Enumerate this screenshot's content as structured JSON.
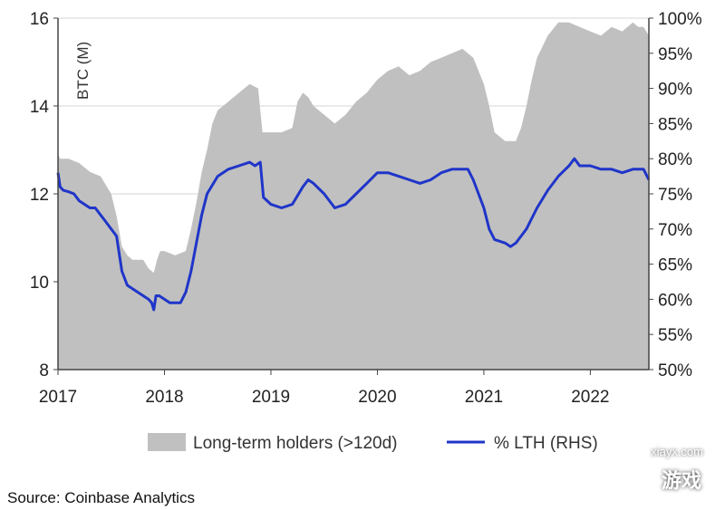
{
  "chart_data": {
    "type": "area",
    "title": "",
    "ylabel": "BTC (M)",
    "ylim": [
      8,
      16
    ],
    "y2lim": [
      50,
      100
    ],
    "y_ticks": [
      "8",
      "10",
      "12",
      "14",
      "16"
    ],
    "y2_ticks": [
      "50%",
      "55%",
      "60%",
      "65%",
      "70%",
      "75%",
      "80%",
      "85%",
      "90%",
      "95%",
      "100%"
    ],
    "x_ticks": [
      "2017",
      "2018",
      "2019",
      "2020",
      "2021",
      "2022"
    ],
    "xlim": [
      2017.0,
      2022.55
    ],
    "grid": "horizontal",
    "legend_position": "bottom",
    "series": [
      {
        "name": "Long-term holders (>120d)",
        "type": "area",
        "axis": "left",
        "color": "#c0c0c0",
        "x": [
          2017.0,
          2017.02,
          2017.1,
          2017.2,
          2017.3,
          2017.4,
          2017.5,
          2017.55,
          2017.6,
          2017.65,
          2017.7,
          2017.8,
          2017.85,
          2017.9,
          2017.93,
          2017.96,
          2018.0,
          2018.1,
          2018.2,
          2018.25,
          2018.3,
          2018.35,
          2018.4,
          2018.45,
          2018.5,
          2018.6,
          2018.7,
          2018.8,
          2018.88,
          2018.92,
          2019.0,
          2019.1,
          2019.2,
          2019.25,
          2019.3,
          2019.35,
          2019.4,
          2019.5,
          2019.6,
          2019.7,
          2019.8,
          2019.9,
          2020.0,
          2020.1,
          2020.2,
          2020.3,
          2020.4,
          2020.5,
          2020.6,
          2020.7,
          2020.8,
          2020.9,
          2021.0,
          2021.05,
          2021.1,
          2021.2,
          2021.3,
          2021.35,
          2021.4,
          2021.45,
          2021.5,
          2021.6,
          2021.7,
          2021.8,
          2021.9,
          2022.0,
          2022.1,
          2022.2,
          2022.3,
          2022.4,
          2022.45,
          2022.5,
          2022.55
        ],
        "values": [
          12.9,
          12.8,
          12.8,
          12.7,
          12.5,
          12.4,
          12.0,
          11.5,
          10.8,
          10.6,
          10.5,
          10.5,
          10.3,
          10.2,
          10.5,
          10.7,
          10.7,
          10.6,
          10.7,
          11.2,
          11.8,
          12.5,
          13.0,
          13.6,
          13.9,
          14.1,
          14.3,
          14.5,
          14.4,
          13.4,
          13.4,
          13.4,
          13.5,
          14.1,
          14.3,
          14.2,
          14.0,
          13.8,
          13.6,
          13.8,
          14.1,
          14.3,
          14.6,
          14.8,
          14.9,
          14.7,
          14.8,
          15.0,
          15.1,
          15.2,
          15.3,
          15.1,
          14.5,
          14.0,
          13.4,
          13.2,
          13.2,
          13.5,
          14.0,
          14.6,
          15.1,
          15.6,
          15.9,
          15.9,
          15.8,
          15.7,
          15.6,
          15.8,
          15.7,
          15.9,
          15.8,
          15.8,
          15.6
        ]
      },
      {
        "name": "% LTH (RHS)",
        "type": "line",
        "axis": "right",
        "color": "#1f35c9",
        "x": [
          2017.0,
          2017.02,
          2017.05,
          2017.1,
          2017.15,
          2017.2,
          2017.3,
          2017.35,
          2017.4,
          2017.45,
          2017.5,
          2017.55,
          2017.6,
          2017.65,
          2017.7,
          2017.75,
          2017.8,
          2017.85,
          2017.88,
          2017.9,
          2017.92,
          2017.95,
          2018.0,
          2018.05,
          2018.1,
          2018.15,
          2018.2,
          2018.25,
          2018.3,
          2018.35,
          2018.4,
          2018.5,
          2018.6,
          2018.7,
          2018.8,
          2018.85,
          2018.9,
          2018.93,
          2019.0,
          2019.1,
          2019.2,
          2019.3,
          2019.35,
          2019.4,
          2019.5,
          2019.6,
          2019.7,
          2019.8,
          2019.9,
          2020.0,
          2020.1,
          2020.2,
          2020.3,
          2020.4,
          2020.5,
          2020.6,
          2020.7,
          2020.75,
          2020.8,
          2020.85,
          2020.9,
          2021.0,
          2021.05,
          2021.1,
          2021.2,
          2021.25,
          2021.3,
          2021.4,
          2021.5,
          2021.6,
          2021.7,
          2021.8,
          2021.85,
          2021.9,
          2022.0,
          2022.1,
          2022.2,
          2022.3,
          2022.4,
          2022.5,
          2022.55
        ],
        "values": [
          78,
          76,
          75.5,
          75.3,
          75,
          74,
          73,
          73,
          72,
          71,
          70,
          69,
          64,
          62,
          61.5,
          61,
          60.5,
          60,
          59.5,
          58.5,
          60.5,
          60.5,
          60,
          59.5,
          59.5,
          59.5,
          61,
          64,
          68,
          72,
          75,
          77.5,
          78.5,
          79,
          79.5,
          79,
          79.5,
          74.5,
          73.5,
          73,
          73.5,
          76,
          77,
          76.5,
          75,
          73,
          73.5,
          75,
          76.5,
          78,
          78,
          77.5,
          77,
          76.5,
          77,
          78,
          78.5,
          78.5,
          78.5,
          78.5,
          77,
          73,
          70,
          68.5,
          68,
          67.5,
          68,
          70,
          73,
          75.5,
          77.5,
          79,
          80,
          79,
          79,
          78.5,
          78.5,
          78,
          78.5,
          78.5,
          77
        ]
      }
    ],
    "source": "Source: Coinbase Analytics"
  },
  "watermark": {
    "site": "xiayx.com",
    "text": "游戏"
  }
}
